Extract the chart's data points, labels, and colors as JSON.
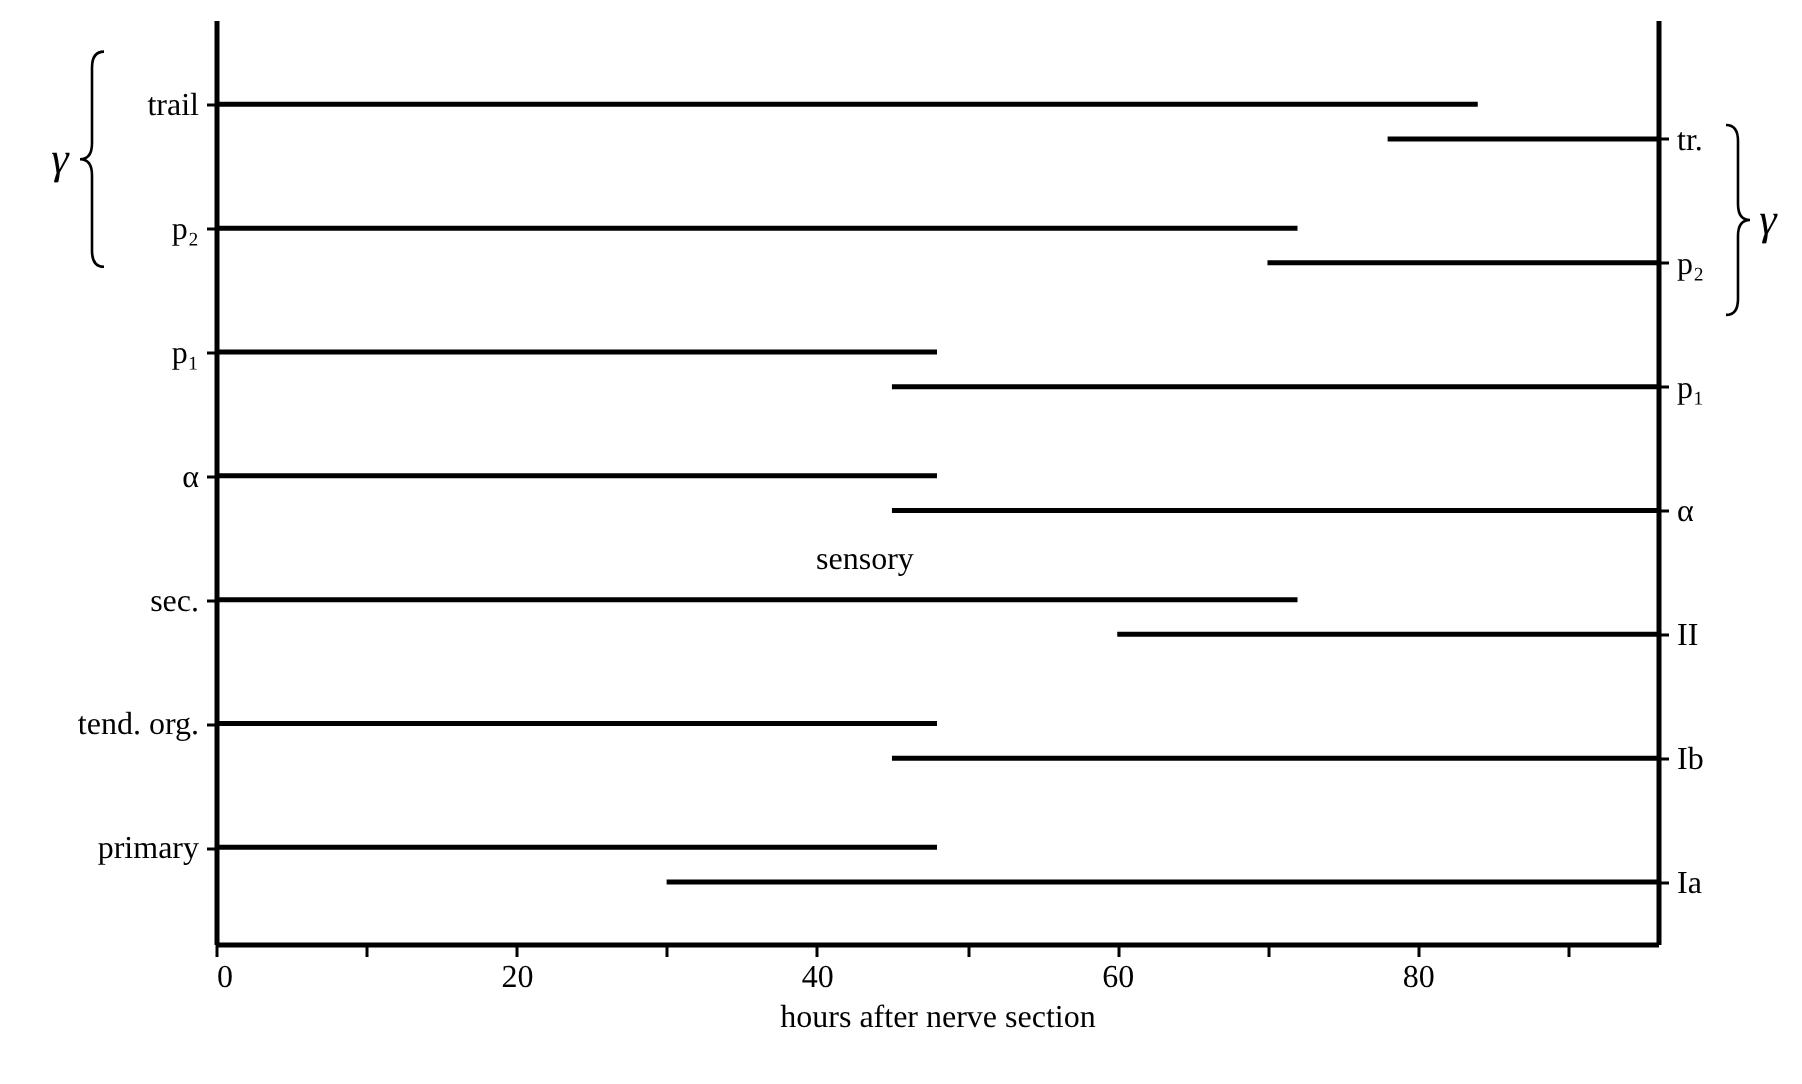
{
  "chart_data": {
    "type": "bar",
    "orientation": "horizontal",
    "xlabel": "hours after nerve section",
    "categories": [
      "trail",
      "p₂",
      "p₁",
      "α",
      "sec.",
      "tend. org.",
      "primary"
    ],
    "y2_categories": [
      "tr.",
      "p₂",
      "p₁",
      "α",
      "II",
      "Ib",
      "Ia"
    ],
    "series": [
      {
        "color": "#000000",
        "base": [
          0,
          0,
          0,
          0,
          0,
          0,
          0
        ],
        "values": [
          84,
          72,
          48,
          48,
          72,
          48,
          48
        ]
      },
      {
        "color": "#000000",
        "base": [
          78,
          70,
          45,
          45,
          60,
          45,
          30
        ],
        "values": [
          18,
          26,
          51,
          51,
          36,
          51,
          66
        ]
      }
    ],
    "xlim": [
      0,
      96
    ],
    "xticks": [
      0,
      {
        "value": 10,
        "label": null
      },
      20,
      {
        "value": 30,
        "label": null
      },
      40,
      {
        "value": 50,
        "label": null
      },
      60,
      {
        "value": 70,
        "label": null
      },
      80,
      {
        "value": 90,
        "label": null
      }
    ],
    "annotations": [
      "sensory",
      "γ",
      "γ"
    ]
  }
}
